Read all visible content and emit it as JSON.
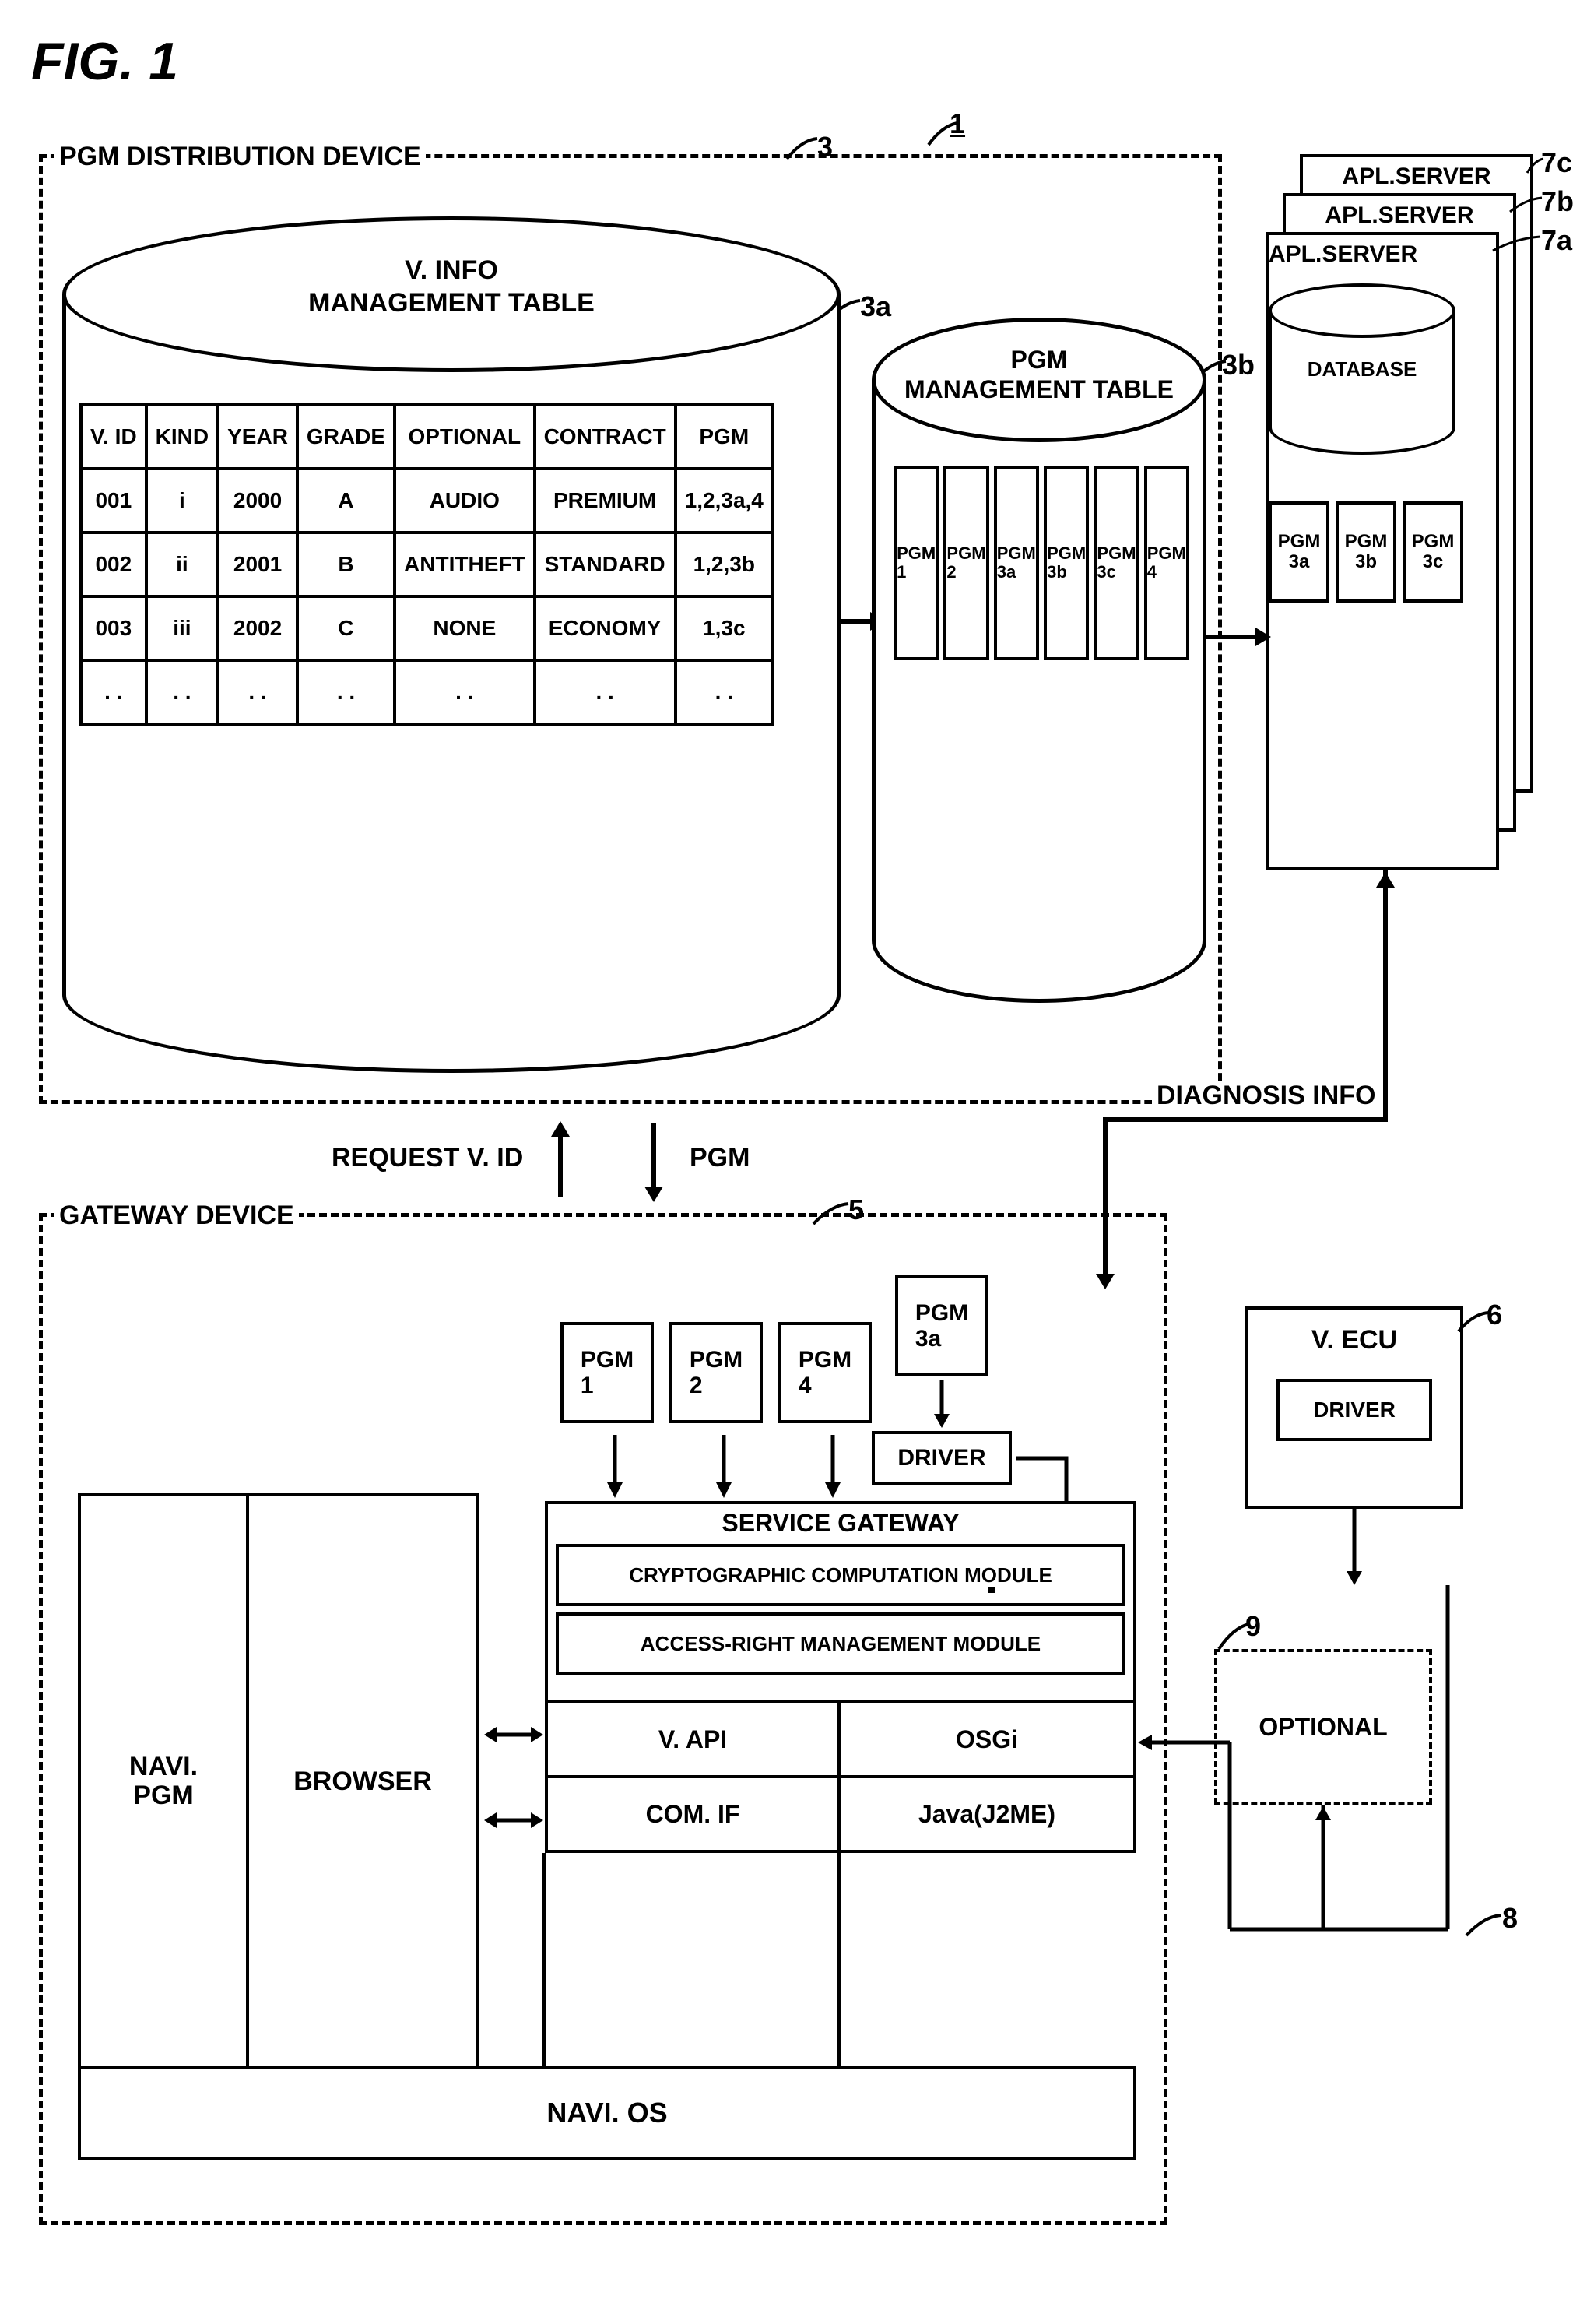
{
  "fig_title": "FIG. 1",
  "refs": {
    "system": "1",
    "pgm_dist": "3",
    "vinfo_table": "3a",
    "pgm_mgmt_table": "3b",
    "gateway": "5",
    "vecu": "6",
    "server_a": "7a",
    "server_b": "7b",
    "server_c": "7c",
    "ecu_driver_arrow": "8",
    "optional": "9"
  },
  "pgm_dist": {
    "title": "PGM DISTRIBUTION DEVICE",
    "vinfo": {
      "title_l1": "V. INFO",
      "title_l2": "MANAGEMENT TABLE",
      "headers": [
        "V. ID",
        "KIND",
        "YEAR",
        "GRADE",
        "OPTIONAL",
        "CONTRACT",
        "PGM"
      ],
      "rows": [
        [
          "001",
          "i",
          "2000",
          "A",
          "AUDIO",
          "PREMIUM",
          "1,2,3a,4"
        ],
        [
          "002",
          "ii",
          "2001",
          "B",
          "ANTITHEFT",
          "STANDARD",
          "1,2,3b"
        ],
        [
          "003",
          "iii",
          "2002",
          "C",
          "NONE",
          "ECONOMY",
          "1,3c"
        ],
        [
          ". .",
          ". .",
          ". .",
          ". .",
          ". .",
          ". .",
          ". ."
        ]
      ]
    },
    "pgm_mgmt": {
      "title_l1": "PGM",
      "title_l2": "MANAGEMENT TABLE",
      "slots": [
        "PGM\n1",
        "PGM\n2",
        "PGM\n3a",
        "PGM\n3b",
        "PGM\n3c",
        "PGM\n4"
      ]
    }
  },
  "apl_servers": {
    "label": "APL.SERVER",
    "database": "DATABASE",
    "pgms": [
      "PGM\n3a",
      "PGM\n3b",
      "PGM\n3c"
    ]
  },
  "mid_labels": {
    "request": "REQUEST V. ID",
    "pgm": "PGM",
    "diagnosis": "DIAGNOSIS INFO"
  },
  "gateway": {
    "title": "GATEWAY DEVICE",
    "navi_pgm": "NAVI.\nPGM",
    "browser": "BROWSER",
    "pgm_top": [
      "PGM\n1",
      "PGM\n2",
      "PGM\n4"
    ],
    "pgm_3a": "PGM\n3a",
    "driver": "DRIVER",
    "service_gw": "SERVICE GATEWAY",
    "crypto": "CRYPTOGRAPHIC COMPUTATION MODULE",
    "access": "ACCESS-RIGHT MANAGEMENT MODULE",
    "vapi": "V. API",
    "osgi": "OSGi",
    "comif": "COM. IF",
    "java": "Java(J2ME)",
    "navi_os": "NAVI. OS"
  },
  "vecu": {
    "label": "V. ECU",
    "driver": "DRIVER"
  },
  "optional_label": "OPTIONAL",
  "colors": {
    "line": "#000000",
    "bg": "#ffffff"
  }
}
